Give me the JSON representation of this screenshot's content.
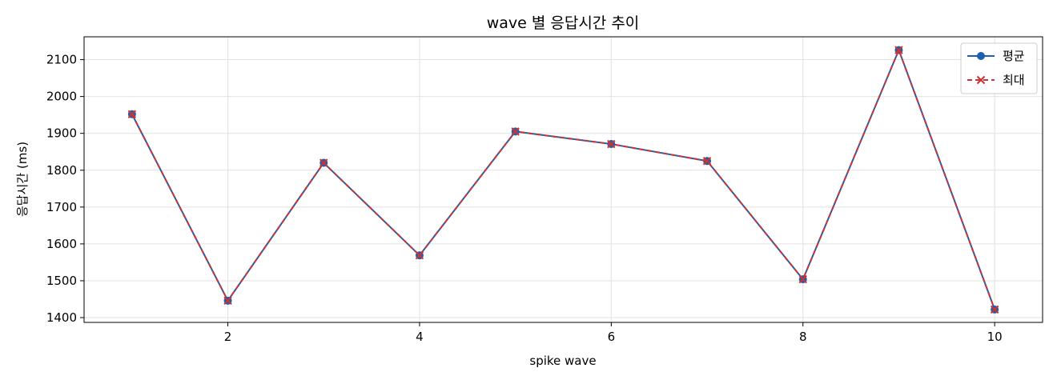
{
  "chart_data": {
    "type": "line",
    "title": "wave 별 응답시간 추이",
    "xlabel": "spike wave",
    "ylabel": "응답시간 (ms)",
    "x": [
      1,
      2,
      3,
      4,
      5,
      6,
      7,
      8,
      9,
      10
    ],
    "xlim": [
      0.5,
      10.5
    ],
    "ylim": [
      1387,
      2162
    ],
    "xticks": [
      2,
      4,
      6,
      8,
      10
    ],
    "yticks": [
      1400,
      1500,
      1600,
      1700,
      1800,
      1900,
      2000,
      2100
    ],
    "grid": true,
    "legend_position": "top-right",
    "series": [
      {
        "name": "평균",
        "values": [
          1952,
          1446,
          1820,
          1569,
          1905,
          1871,
          1825,
          1504,
          2126,
          1422
        ],
        "color": "#1f5fb0",
        "marker": "circle",
        "line_style": "solid"
      },
      {
        "name": "최대",
        "values": [
          1952,
          1446,
          1820,
          1569,
          1905,
          1871,
          1825,
          1504,
          2126,
          1422
        ],
        "color": "#cc3333",
        "marker": "x",
        "line_style": "dashed"
      }
    ]
  }
}
